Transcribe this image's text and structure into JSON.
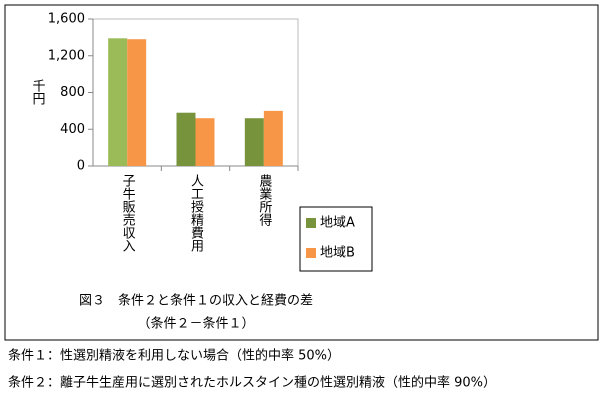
{
  "chart_data": {
    "type": "bar",
    "y_label": "千円",
    "categories": [
      "子牛販売収入",
      "人工授精費用",
      "農業所得"
    ],
    "series": [
      {
        "name": "地域A",
        "color": "#77933c",
        "colors": [
          "#9bbb59",
          "#77933c",
          "#77933c"
        ],
        "values": [
          1390,
          580,
          520
        ]
      },
      {
        "name": "地域B",
        "color": "#f79646",
        "values": [
          1380,
          520,
          600
        ]
      }
    ],
    "ylim": [
      0,
      1600
    ],
    "yticks": [
      0,
      400,
      800,
      {
        "value": 1200,
        "label": "1,200"
      },
      {
        "value": 1600,
        "label": "1,600"
      }
    ],
    "grid": false,
    "legend": "right",
    "caption": [
      "図３　条件２と条件１の収入と経費の差",
      "（条件２－条件１）"
    ]
  },
  "notes": [
    "条件１：性選別精液を利用しない場合（性的中率 50%）",
    "条件２：離子牛生産用に選別されたホルスタイン種の性選別精液（性的中率 90%）"
  ]
}
